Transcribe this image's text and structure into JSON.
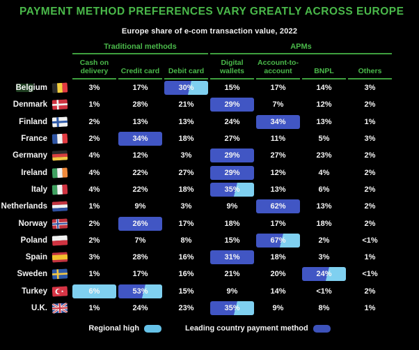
{
  "header": {
    "title": "PAYMENT METHOD PREFERENCES VARY GREATLY ACROSS EUROPE",
    "subtitle": "Europe share of e-com transaction value, 2022"
  },
  "colors": {
    "background": "#000000",
    "accent_green": "#4ab94a",
    "text_white": "#f5f5f5",
    "highlight_dark_blue": "#4156c4",
    "highlight_light_blue": "#7fd0f0",
    "search_highlight_green": "#1e3d20"
  },
  "chart_data": {
    "type": "heatmap-table",
    "title": "PAYMENT METHOD PREFERENCES VARY GREATLY ACROSS EUROPE",
    "subtitle": "Europe share of e-com transaction value, 2022",
    "unit": "% share of e-com transaction value",
    "column_groups": [
      {
        "label": "Traditional methods",
        "span": 3
      },
      {
        "label": "APMs",
        "span": 4
      }
    ],
    "columns": [
      {
        "label": "Cash on delivery",
        "lines": [
          "Cash on",
          "delivery"
        ]
      },
      {
        "label": "Credit card",
        "lines": [
          "Credit card"
        ]
      },
      {
        "label": "Debit card",
        "lines": [
          "Debit card"
        ]
      },
      {
        "label": "Digital wallets",
        "lines": [
          "Digital",
          "wallets"
        ]
      },
      {
        "label": "Account-to-account",
        "lines": [
          "Account-to-",
          "account"
        ]
      },
      {
        "label": "BNPL",
        "lines": [
          "BNPL"
        ]
      },
      {
        "label": "Others",
        "lines": [
          "Others"
        ]
      }
    ],
    "highlight_types": {
      "light": "Regional high",
      "dark": "Leading country payment method",
      "both": "Regional high & leading country payment method"
    },
    "rows": [
      {
        "country": "Belgium",
        "flag": "belgium-flag",
        "flag_code": "be",
        "name_highlight": "Belg",
        "cells": [
          {
            "value": "3%"
          },
          {
            "value": "17%"
          },
          {
            "value": "30%",
            "highlight": "both"
          },
          {
            "value": "15%"
          },
          {
            "value": "17%"
          },
          {
            "value": "14%"
          },
          {
            "value": "3%"
          }
        ]
      },
      {
        "country": "Denmark",
        "flag": "denmark-flag",
        "flag_code": "dk",
        "cells": [
          {
            "value": "1%"
          },
          {
            "value": "28%"
          },
          {
            "value": "21%"
          },
          {
            "value": "29%",
            "highlight": "dark"
          },
          {
            "value": "7%"
          },
          {
            "value": "12%"
          },
          {
            "value": "2%"
          }
        ]
      },
      {
        "country": "Finland",
        "flag": "finland-flag",
        "flag_code": "fi",
        "cells": [
          {
            "value": "2%"
          },
          {
            "value": "13%"
          },
          {
            "value": "13%"
          },
          {
            "value": "24%"
          },
          {
            "value": "34%",
            "highlight": "dark"
          },
          {
            "value": "13%"
          },
          {
            "value": "1%"
          }
        ]
      },
      {
        "country": "France",
        "flag": "france-flag",
        "flag_code": "fr",
        "cells": [
          {
            "value": "2%"
          },
          {
            "value": "34%",
            "highlight": "dark"
          },
          {
            "value": "18%"
          },
          {
            "value": "27%"
          },
          {
            "value": "11%"
          },
          {
            "value": "5%"
          },
          {
            "value": "3%"
          }
        ]
      },
      {
        "country": "Germany",
        "flag": "germany-flag",
        "flag_code": "de",
        "cells": [
          {
            "value": "4%"
          },
          {
            "value": "12%"
          },
          {
            "value": "3%"
          },
          {
            "value": "29%",
            "highlight": "dark"
          },
          {
            "value": "27%"
          },
          {
            "value": "23%"
          },
          {
            "value": "2%"
          }
        ]
      },
      {
        "country": "Ireland",
        "flag": "ireland-flag",
        "flag_code": "ie",
        "cells": [
          {
            "value": "4%"
          },
          {
            "value": "22%"
          },
          {
            "value": "27%"
          },
          {
            "value": "29%",
            "highlight": "dark"
          },
          {
            "value": "12%"
          },
          {
            "value": "4%"
          },
          {
            "value": "2%"
          }
        ]
      },
      {
        "country": "Italy",
        "flag": "italy-flag",
        "flag_code": "it",
        "cells": [
          {
            "value": "4%"
          },
          {
            "value": "22%"
          },
          {
            "value": "18%"
          },
          {
            "value": "35%",
            "highlight": "both"
          },
          {
            "value": "13%"
          },
          {
            "value": "6%"
          },
          {
            "value": "2%"
          }
        ]
      },
      {
        "country": "Netherlands",
        "flag": "netherlands-flag",
        "flag_code": "nl",
        "cells": [
          {
            "value": "1%"
          },
          {
            "value": "9%"
          },
          {
            "value": "3%"
          },
          {
            "value": "9%"
          },
          {
            "value": "62%",
            "highlight": "dark"
          },
          {
            "value": "13%"
          },
          {
            "value": "2%"
          }
        ]
      },
      {
        "country": "Norway",
        "flag": "norway-flag",
        "flag_code": "no",
        "cells": [
          {
            "value": "2%"
          },
          {
            "value": "26%",
            "highlight": "dark"
          },
          {
            "value": "17%"
          },
          {
            "value": "18%"
          },
          {
            "value": "17%"
          },
          {
            "value": "18%"
          },
          {
            "value": "2%"
          }
        ]
      },
      {
        "country": "Poland",
        "flag": "poland-flag",
        "flag_code": "pl",
        "cells": [
          {
            "value": "2%"
          },
          {
            "value": "7%"
          },
          {
            "value": "8%"
          },
          {
            "value": "15%"
          },
          {
            "value": "67%",
            "highlight": "both"
          },
          {
            "value": "2%"
          },
          {
            "value": "<1%"
          }
        ]
      },
      {
        "country": "Spain",
        "flag": "spain-flag",
        "flag_code": "es",
        "cells": [
          {
            "value": "3%"
          },
          {
            "value": "28%"
          },
          {
            "value": "16%"
          },
          {
            "value": "31%",
            "highlight": "dark"
          },
          {
            "value": "18%"
          },
          {
            "value": "3%"
          },
          {
            "value": "1%"
          }
        ]
      },
      {
        "country": "Sweden",
        "flag": "sweden-flag",
        "flag_code": "se",
        "cells": [
          {
            "value": "1%"
          },
          {
            "value": "17%"
          },
          {
            "value": "16%"
          },
          {
            "value": "21%"
          },
          {
            "value": "20%"
          },
          {
            "value": "24%",
            "highlight": "both"
          },
          {
            "value": "<1%"
          }
        ]
      },
      {
        "country": "Turkey",
        "flag": "turkey-flag",
        "flag_code": "tr",
        "cells": [
          {
            "value": "6%",
            "highlight": "light"
          },
          {
            "value": "53%",
            "highlight": "both"
          },
          {
            "value": "15%"
          },
          {
            "value": "9%"
          },
          {
            "value": "14%"
          },
          {
            "value": "<1%"
          },
          {
            "value": "2%"
          }
        ]
      },
      {
        "country": "U.K.",
        "flag": "uk-flag",
        "flag_code": "gb",
        "cells": [
          {
            "value": "1%"
          },
          {
            "value": "24%"
          },
          {
            "value": "23%"
          },
          {
            "value": "35%",
            "highlight": "both"
          },
          {
            "value": "9%"
          },
          {
            "value": "8%"
          },
          {
            "value": "1%"
          }
        ]
      }
    ],
    "legend": [
      {
        "type": "light",
        "label": "Regional high"
      },
      {
        "type": "dark",
        "label": "Leading country payment method"
      }
    ]
  }
}
